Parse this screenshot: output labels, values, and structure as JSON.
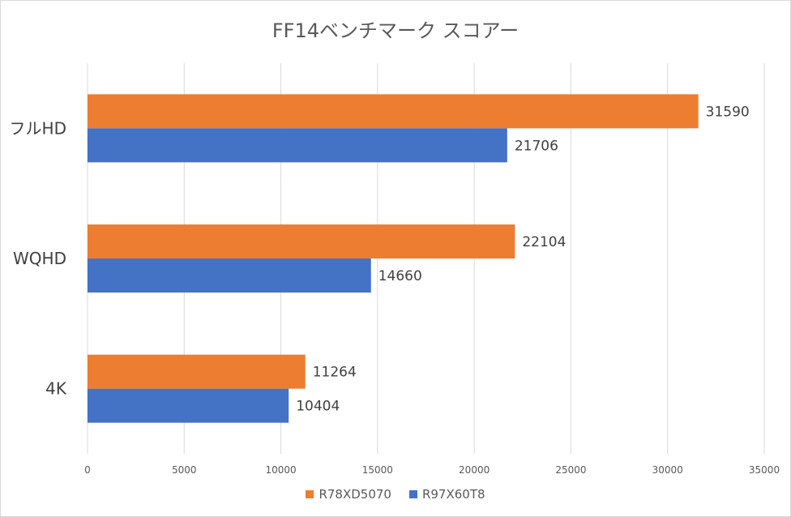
{
  "chart_data": {
    "type": "bar",
    "orientation": "horizontal",
    "title": "FF14ベンチマーク スコアー",
    "categories": [
      "フルHD",
      "WQHD",
      "4K"
    ],
    "series": [
      {
        "name": "R78XD5070",
        "color": "#ED7D31",
        "values": [
          31590,
          22104,
          11264
        ]
      },
      {
        "name": "R97X60T8",
        "color": "#4472C4",
        "values": [
          21706,
          14660,
          10404
        ]
      }
    ],
    "xlim": [
      0,
      35000
    ],
    "xticks": [
      0,
      5000,
      10000,
      15000,
      20000,
      25000,
      30000,
      35000
    ],
    "grid": true,
    "legend_position": "bottom",
    "data_labels": true
  }
}
